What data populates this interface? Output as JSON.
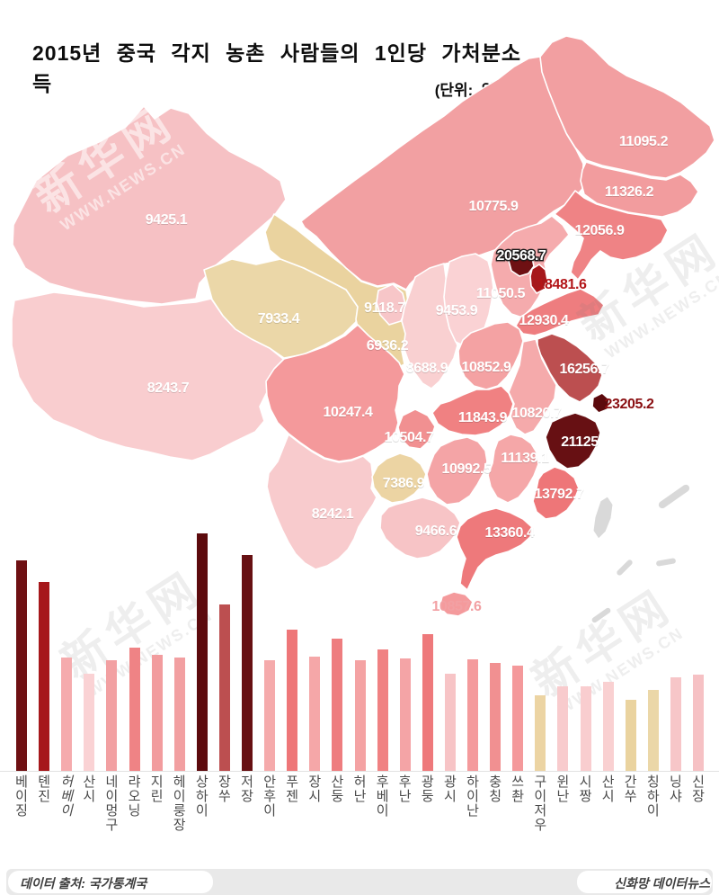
{
  "page": {
    "title": "2015년 중국 각지 농촌 사람들의 1인당 가처분소득",
    "unit_note": "(단위: 위안)"
  },
  "watermark": {
    "brand": "新华网",
    "site": "WWW.NEWS.CN"
  },
  "footer": {
    "source": "데이터 출처: 국가통계국",
    "credit": "신화망 데이터뉴스"
  },
  "map": {
    "neutral_color": "#d9d9d9"
  },
  "chart_data": {
    "type": "bar",
    "title": "2015년 중국 각지 농촌 사람들의 1인당 가처분소득",
    "unit": "위안",
    "ylim": [
      0,
      23205.2
    ],
    "grid": false,
    "legend": "none",
    "note": "same values shown as choropleth labels on China map",
    "categories": [
      "베이징",
      "톈진",
      "허베이",
      "산시",
      "네이멍구",
      "랴오닝",
      "지린",
      "헤이룽장",
      "상하이",
      "장쑤",
      "저장",
      "안후이",
      "푸젠",
      "장시",
      "산둥",
      "허난",
      "후베이",
      "후난",
      "광둥",
      "광시",
      "하이난",
      "충칭",
      "쓰촨",
      "구이저우",
      "윈난",
      "시짱",
      "산시",
      "간쑤",
      "칭하이",
      "닝샤",
      "신장"
    ],
    "values": [
      20568.7,
      18481.6,
      11050.5,
      9453.9,
      10775.9,
      12056.9,
      11326.2,
      11095.2,
      23205.2,
      16256.7,
      21125,
      10820.7,
      13792.7,
      11139.1,
      12930.4,
      10852.9,
      11843.9,
      10992.5,
      13360.4,
      9466.6,
      10857.6,
      10504.7,
      10247.4,
      7386.9,
      8242.1,
      8243.7,
      8688.9,
      6936.2,
      7933.4,
      9118.7,
      9425.1
    ],
    "colors": [
      "#6e1013",
      "#a6181b",
      "#f5abad",
      "#fad2d4",
      "#f2a0a2",
      "#ef8385",
      "#f29c9e",
      "#f29fa1",
      "#5c0a0d",
      "#bc4f50",
      "#671013",
      "#f5aaab",
      "#ee7678",
      "#f5a7a8",
      "#ee7d7f",
      "#f4a2a3",
      "#f08182",
      "#f4a4a6",
      "#ee797b",
      "#f7c4c6",
      "#f49a9c",
      "#f19091",
      "#f4999b",
      "#ecd4a3",
      "#f8cbcd",
      "#f9cdcf",
      "#f9d0d1",
      "#ead39f",
      "#ebd7a8",
      "#f7c6c8",
      "#f6c1c4"
    ]
  }
}
